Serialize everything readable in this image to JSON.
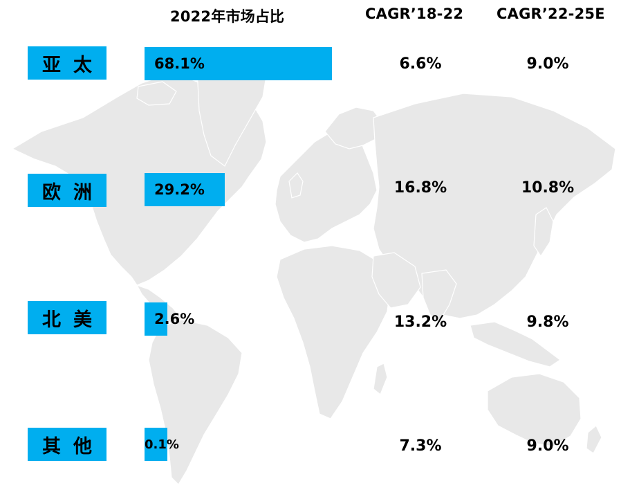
{
  "headers": {
    "share": "2022年市场占比",
    "cagr_past": "CAGR’18-22",
    "cagr_future": "CAGR’22-25E"
  },
  "colors": {
    "bar": "#00AEEF",
    "map": "#E8E8E8",
    "map_border": "#FFFFFF"
  },
  "map_icon": "world-map",
  "regions": [
    {
      "name": "亚太",
      "share_label": "68.1%",
      "cagr_past": "6.6%",
      "cagr_future": "9.0%"
    },
    {
      "name": "欧洲",
      "share_label": "29.2%",
      "cagr_past": "16.8%",
      "cagr_future": "10.8%"
    },
    {
      "name": "北美",
      "share_label": "2.6%",
      "cagr_past": "13.2%",
      "cagr_future": "9.8%"
    },
    {
      "name": "其他",
      "share_label": "0.1%",
      "cagr_past": "7.3%",
      "cagr_future": "9.0%"
    }
  ],
  "chart_data": {
    "type": "bar",
    "title": "",
    "categories": [
      "亚太",
      "欧洲",
      "北美",
      "其他"
    ],
    "series": [
      {
        "name": "2022年市场占比",
        "values": [
          68.1,
          29.2,
          2.6,
          0.1
        ]
      },
      {
        "name": "CAGR’18-22",
        "values": [
          6.6,
          16.8,
          13.2,
          7.3
        ]
      },
      {
        "name": "CAGR’22-25E",
        "values": [
          9.0,
          10.8,
          9.8,
          9.0
        ]
      }
    ],
    "xlabel": "",
    "ylabel": ""
  }
}
